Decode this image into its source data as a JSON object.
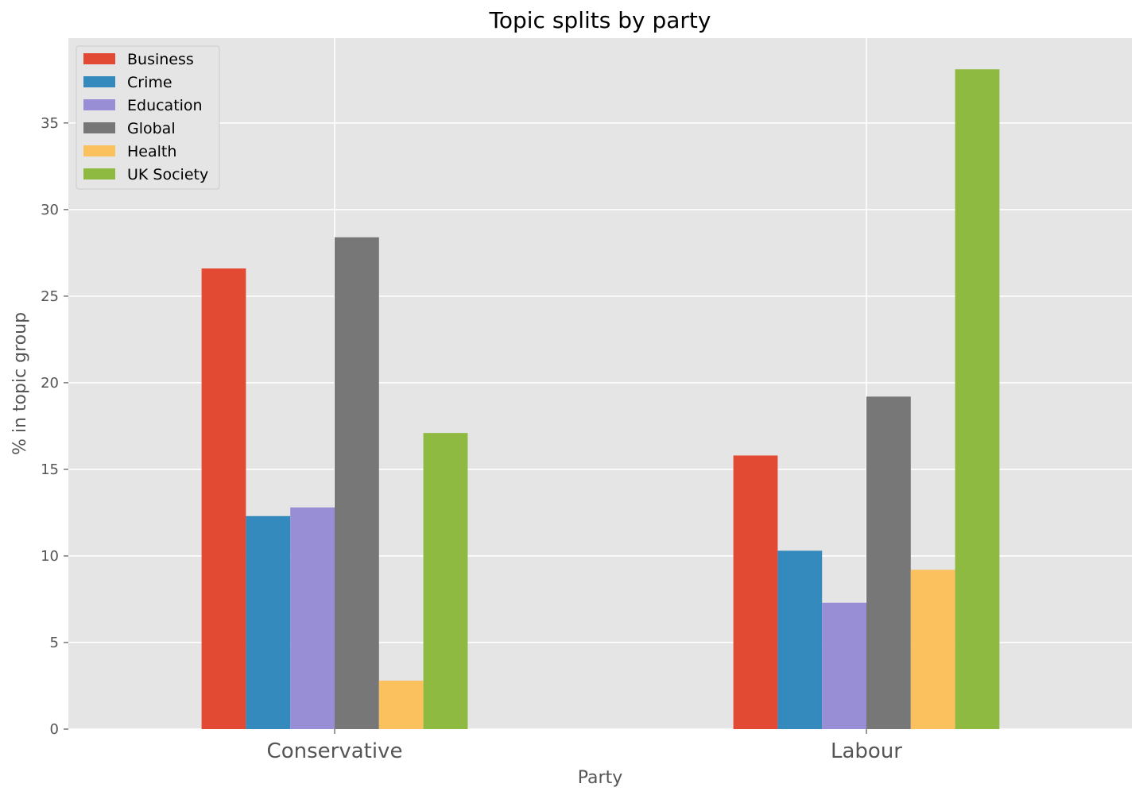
{
  "chart_data": {
    "type": "bar",
    "title": "Topic splits by party",
    "xlabel": "Party",
    "ylabel": "% in topic group",
    "categories": [
      "Conservative",
      "Labour"
    ],
    "series": [
      {
        "name": "Business",
        "color": "#E24A33",
        "values": [
          26.6,
          15.8
        ]
      },
      {
        "name": "Crime",
        "color": "#348ABD",
        "values": [
          12.3,
          10.3
        ]
      },
      {
        "name": "Education",
        "color": "#988ED5",
        "values": [
          12.8,
          7.3
        ]
      },
      {
        "name": "Global",
        "color": "#777777",
        "values": [
          28.4,
          19.2
        ]
      },
      {
        "name": "Health",
        "color": "#FBC15E",
        "values": [
          2.8,
          9.2
        ]
      },
      {
        "name": "UK Society",
        "color": "#8EBA42",
        "values": [
          17.1,
          38.1
        ]
      }
    ],
    "yticks": [
      "0",
      "5",
      "10",
      "15",
      "20",
      "25",
      "30",
      "35"
    ],
    "ylim": [
      0,
      39.9
    ],
    "grid": true,
    "legend_position": "top-left",
    "colors": {
      "plot_background": "#E5E5E5",
      "grid": "#FFFFFF"
    }
  }
}
